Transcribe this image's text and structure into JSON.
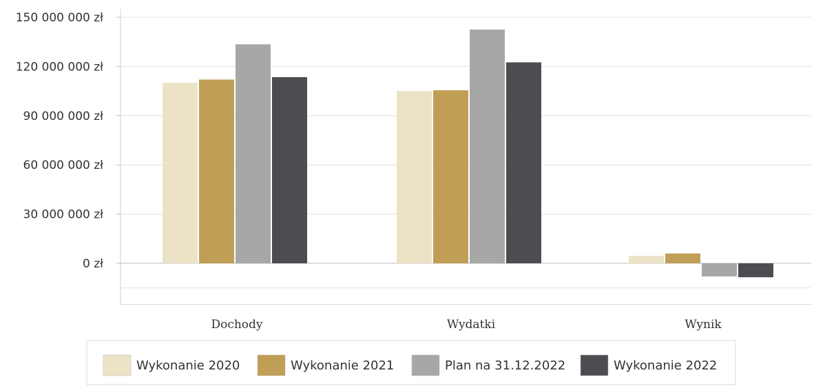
{
  "chart_data": {
    "type": "bar",
    "categories": [
      "Dochody",
      "Wydatki",
      "Wynik"
    ],
    "series": [
      {
        "name": "Wykonanie 2020",
        "values": [
          110000000,
          105000000,
          4500000
        ],
        "color": "#ece2c6"
      },
      {
        "name": "Wykonanie 2021",
        "values": [
          112000000,
          105500000,
          6000000
        ],
        "color": "#c19e55"
      },
      {
        "name": "Plan na 31.12.2022",
        "values": [
          133500000,
          142500000,
          -8000000
        ],
        "color": "#a6a8a7"
      },
      {
        "name": "Wykonanie 2022",
        "values": [
          113500000,
          122500000,
          -8500000
        ],
        "color": "#4b4d50"
      }
    ],
    "ylim": [
      -25000000,
      150000000
    ],
    "y_ticks": [
      {
        "value": 0,
        "label": "0 zł"
      },
      {
        "value": 30000000,
        "label": "30 000 000 zł"
      },
      {
        "value": 60000000,
        "label": "60 000 000 zł"
      },
      {
        "value": 90000000,
        "label": "90 000 000 zł"
      },
      {
        "value": 120000000,
        "label": "120 000 000 zł"
      },
      {
        "value": 150000000,
        "label": "150 000 000 zł"
      }
    ],
    "grid": true,
    "legend_position": "bottom",
    "title": "",
    "xlabel": "",
    "ylabel": ""
  }
}
